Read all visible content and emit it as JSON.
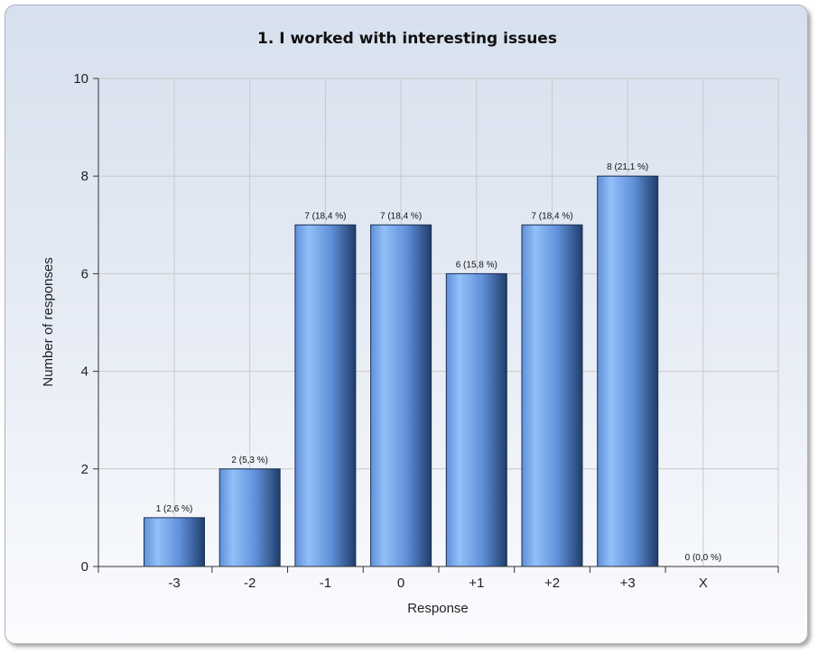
{
  "chart_data": {
    "type": "bar",
    "title": "1. I worked with interesting issues",
    "xlabel": "Response",
    "ylabel": "Number of responses",
    "categories": [
      "-3",
      "-2",
      "-1",
      "0",
      "+1",
      "+2",
      "+3",
      "X"
    ],
    "values": [
      1,
      2,
      7,
      7,
      6,
      7,
      8,
      0
    ],
    "data_labels": [
      "1 (2,6 %)",
      "2 (5,3 %)",
      "7 (18,4 %)",
      "7 (18,4 %)",
      "6 (15,8 %)",
      "7 (18,4 %)",
      "8 (21,1 %)",
      "0 (0,0 %)"
    ],
    "ylim": [
      0,
      10
    ],
    "yticks": [
      "0",
      "2",
      "4",
      "6",
      "8",
      "10"
    ],
    "grid": true,
    "colors": {
      "bar_light": "#93bff9",
      "bar_mid": "#5f8fd8",
      "bar_dark": "#1f3d6a",
      "grid": "#c9c9c9",
      "axis": "#333333"
    }
  }
}
